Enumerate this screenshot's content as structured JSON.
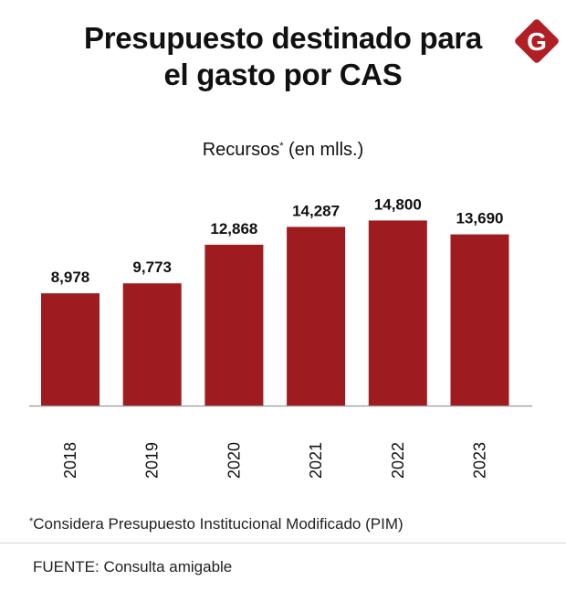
{
  "colors": {
    "bar": "#9e1b20",
    "brand": "#b11f24",
    "axis": "#999999",
    "text": "#111111"
  },
  "header": {
    "title_line1": "Presupuesto destinado para",
    "title_line2": "el gasto por CAS",
    "logo_letter": "G",
    "logo_icon": "g-logo-icon"
  },
  "footer": {
    "note_marker": "*",
    "note": "Considera Presupuesto Institucional Modificado (PIM)",
    "source": "FUENTE: Consulta amigable"
  },
  "chart_data": {
    "type": "bar",
    "title": "Recursos* (en mlls.)",
    "title_main": "Recursos",
    "title_marker": "*",
    "title_unit": " (en mlls.)",
    "xlabel": "",
    "ylabel": "",
    "categories": [
      "2018",
      "2019",
      "2020",
      "2021",
      "2022",
      "2023"
    ],
    "values": [
      8978,
      9773,
      12868,
      14287,
      14800,
      13690
    ],
    "value_labels": [
      "8,978",
      "9,773",
      "12,868",
      "14,287",
      "14,800",
      "13,690"
    ],
    "ylim": [
      0,
      16000
    ],
    "grid": false,
    "legend": "none"
  }
}
